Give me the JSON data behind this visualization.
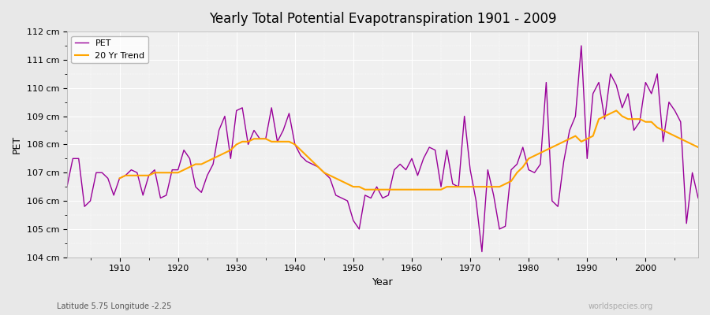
{
  "title": "Yearly Total Potential Evapotranspiration 1901 - 2009",
  "xlabel": "Year",
  "ylabel": "PET",
  "subtitle": "Latitude 5.75 Longitude -2.25",
  "watermark": "worldspecies.org",
  "pet_color": "#990099",
  "trend_color": "#FFA500",
  "background_color": "#E8E8E8",
  "plot_bg_color": "#F0F0F0",
  "ylim": [
    104,
    112
  ],
  "ytick_labels": [
    "104 cm",
    "105 cm",
    "106 cm",
    "107 cm",
    "108 cm",
    "109 cm",
    "110 cm",
    "111 cm",
    "112 cm"
  ],
  "ytick_values": [
    104,
    105,
    106,
    107,
    108,
    109,
    110,
    111,
    112
  ],
  "xtick_values": [
    1910,
    1920,
    1930,
    1940,
    1950,
    1960,
    1970,
    1980,
    1990,
    2000
  ],
  "years": [
    1901,
    1902,
    1903,
    1904,
    1905,
    1906,
    1907,
    1908,
    1909,
    1910,
    1911,
    1912,
    1913,
    1914,
    1915,
    1916,
    1917,
    1918,
    1919,
    1920,
    1921,
    1922,
    1923,
    1924,
    1925,
    1926,
    1927,
    1928,
    1929,
    1930,
    1931,
    1932,
    1933,
    1934,
    1935,
    1936,
    1937,
    1938,
    1939,
    1940,
    1941,
    1942,
    1943,
    1944,
    1945,
    1946,
    1947,
    1948,
    1949,
    1950,
    1951,
    1952,
    1953,
    1954,
    1955,
    1956,
    1957,
    1958,
    1959,
    1960,
    1961,
    1962,
    1963,
    1964,
    1965,
    1966,
    1967,
    1968,
    1969,
    1970,
    1971,
    1972,
    1973,
    1974,
    1975,
    1976,
    1977,
    1978,
    1979,
    1980,
    1981,
    1982,
    1983,
    1984,
    1985,
    1986,
    1987,
    1988,
    1989,
    1990,
    1991,
    1992,
    1993,
    1994,
    1995,
    1996,
    1997,
    1998,
    1999,
    2000,
    2001,
    2002,
    2003,
    2004,
    2005,
    2006,
    2007,
    2008,
    2009
  ],
  "pet_values": [
    106.5,
    107.5,
    107.5,
    105.8,
    106.0,
    107.0,
    107.0,
    106.8,
    106.2,
    106.8,
    106.9,
    107.1,
    107.0,
    106.2,
    106.9,
    107.1,
    106.1,
    106.2,
    107.1,
    107.1,
    107.8,
    107.5,
    106.5,
    106.3,
    106.9,
    107.3,
    108.5,
    109.0,
    107.5,
    109.2,
    109.3,
    108.0,
    108.5,
    108.2,
    108.2,
    109.3,
    108.1,
    108.5,
    109.1,
    108.0,
    107.6,
    107.4,
    107.3,
    107.2,
    107.0,
    106.8,
    106.2,
    106.1,
    106.0,
    105.3,
    105.0,
    106.2,
    106.1,
    106.5,
    106.1,
    106.2,
    107.1,
    107.3,
    107.1,
    107.5,
    106.9,
    107.5,
    107.9,
    107.8,
    106.5,
    107.8,
    106.6,
    106.5,
    109.0,
    107.1,
    106.0,
    104.2,
    107.1,
    106.2,
    105.0,
    105.1,
    107.1,
    107.3,
    107.9,
    107.1,
    107.0,
    107.3,
    110.2,
    106.0,
    105.8,
    107.4,
    108.5,
    109.0,
    111.5,
    107.5,
    109.8,
    110.2,
    108.9,
    110.5,
    110.1,
    109.3,
    109.8,
    108.5,
    108.8,
    110.2,
    109.8,
    110.5,
    108.1,
    109.5,
    109.2,
    108.8,
    105.2,
    107.0,
    106.1
  ],
  "trend_years": [
    1910,
    1911,
    1912,
    1913,
    1914,
    1915,
    1916,
    1917,
    1918,
    1919,
    1920,
    1921,
    1922,
    1923,
    1924,
    1925,
    1926,
    1927,
    1928,
    1929,
    1930,
    1931,
    1932,
    1933,
    1934,
    1935,
    1936,
    1937,
    1938,
    1939,
    1940,
    1941,
    1942,
    1943,
    1944,
    1945,
    1946,
    1947,
    1948,
    1949,
    1950,
    1951,
    1952,
    1953,
    1954,
    1955,
    1956,
    1957,
    1958,
    1959,
    1960,
    1961,
    1962,
    1963,
    1964,
    1965,
    1966,
    1967,
    1968,
    1969,
    1970,
    1971,
    1972,
    1973,
    1974,
    1975,
    1976,
    1977,
    1978,
    1979,
    1980,
    1981,
    1982,
    1983,
    1984,
    1985,
    1986,
    1987,
    1988,
    1989,
    1990,
    1991,
    1992,
    1993,
    1994,
    1995,
    1996,
    1997,
    1998,
    1999,
    2000,
    2001,
    2002,
    2003,
    2004,
    2005,
    2006,
    2007,
    2008,
    2009
  ],
  "trend_values": [
    106.8,
    106.9,
    106.9,
    106.9,
    106.9,
    106.9,
    107.0,
    107.0,
    107.0,
    107.0,
    107.0,
    107.1,
    107.2,
    107.3,
    107.3,
    107.4,
    107.5,
    107.6,
    107.7,
    107.8,
    108.0,
    108.1,
    108.1,
    108.2,
    108.2,
    108.2,
    108.1,
    108.1,
    108.1,
    108.1,
    108.0,
    107.8,
    107.6,
    107.4,
    107.2,
    107.0,
    106.9,
    106.8,
    106.7,
    106.6,
    106.5,
    106.5,
    106.4,
    106.4,
    106.4,
    106.4,
    106.4,
    106.4,
    106.4,
    106.4,
    106.4,
    106.4,
    106.4,
    106.4,
    106.4,
    106.4,
    106.5,
    106.5,
    106.5,
    106.5,
    106.5,
    106.5,
    106.5,
    106.5,
    106.5,
    106.5,
    106.6,
    106.7,
    107.0,
    107.2,
    107.5,
    107.6,
    107.7,
    107.8,
    107.9,
    108.0,
    108.1,
    108.2,
    108.3,
    108.1,
    108.2,
    108.3,
    108.9,
    109.0,
    109.1,
    109.2,
    109.0,
    108.9,
    108.9,
    108.9,
    108.8,
    108.8,
    108.6,
    108.5,
    108.4,
    108.3,
    108.2,
    108.1,
    108.0,
    107.9
  ]
}
